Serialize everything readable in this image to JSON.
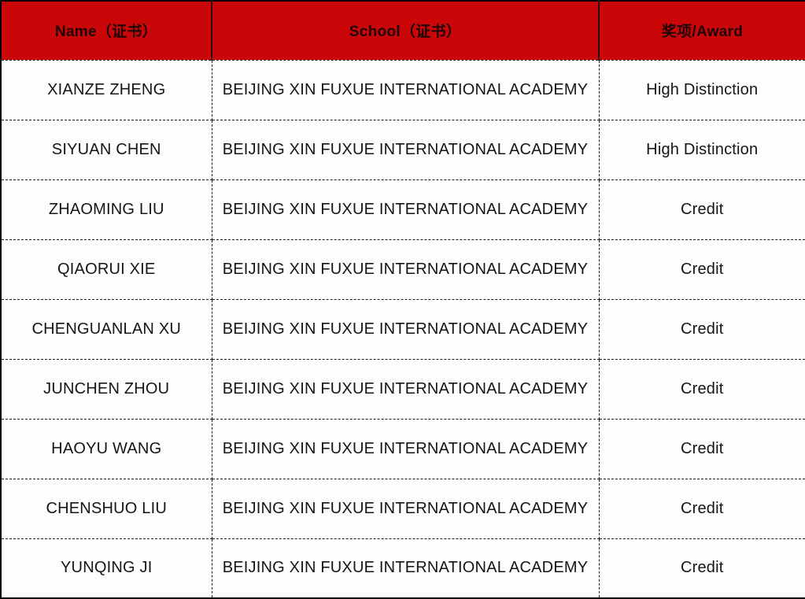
{
  "table": {
    "columns": [
      {
        "label": "Name（证书）"
      },
      {
        "label": "School（证书）"
      },
      {
        "label": "奖项/Award"
      }
    ],
    "rows": [
      {
        "name": "XIANZE ZHENG",
        "school": "BEIJING XIN FUXUE INTERNATIONAL ACADEMY",
        "award": "High Distinction"
      },
      {
        "name": "SIYUAN CHEN",
        "school": "BEIJING XIN FUXUE INTERNATIONAL ACADEMY",
        "award": "High Distinction"
      },
      {
        "name": "ZHAOMING LIU",
        "school": "BEIJING XIN FUXUE INTERNATIONAL ACADEMY",
        "award": "Credit"
      },
      {
        "name": "QIAORUI XIE",
        "school": "BEIJING XIN FUXUE INTERNATIONAL ACADEMY",
        "award": "Credit"
      },
      {
        "name": "CHENGUANLAN XU",
        "school": "BEIJING XIN FUXUE INTERNATIONAL ACADEMY",
        "award": "Credit"
      },
      {
        "name": "JUNCHEN ZHOU",
        "school": "BEIJING XIN FUXUE INTERNATIONAL ACADEMY",
        "award": "Credit"
      },
      {
        "name": "HAOYU WANG",
        "school": "BEIJING XIN FUXUE INTERNATIONAL ACADEMY",
        "award": "Credit"
      },
      {
        "name": "CHENSHUO LIU",
        "school": "BEIJING XIN FUXUE INTERNATIONAL ACADEMY",
        "award": "Credit"
      },
      {
        "name": "YUNQING JI",
        "school": "BEIJING XIN FUXUE INTERNATIONAL ACADEMY",
        "award": "Credit"
      }
    ]
  },
  "colors": {
    "header_bg": "#cb0608",
    "header_text": "#1e0506",
    "body_bg": "#fdfdfd",
    "body_text": "#151515",
    "outer_border": "#000000",
    "header_divider": "#2b0a0c",
    "dashed_grid": "#1a1a1a"
  }
}
